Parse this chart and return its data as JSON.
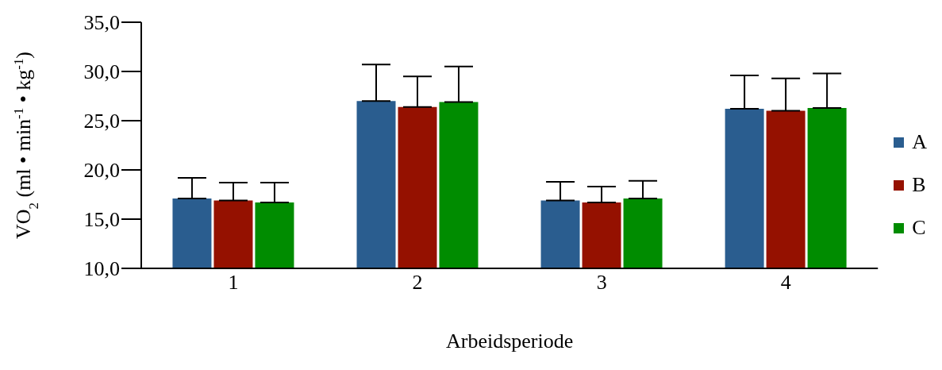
{
  "chart_data": {
    "type": "bar",
    "xlabel": "Arbeidsperiode",
    "ylabel": "VO$_{2}$ (ml • min$^{-1}$ • kg$^{-1}$)",
    "categories": [
      "1",
      "2",
      "3",
      "4"
    ],
    "series": [
      {
        "name": "A",
        "color": "#2a5d8f",
        "values": [
          17.1,
          27.0,
          16.9,
          26.2
        ],
        "errors": [
          [
            17.1,
            19.2
          ],
          [
            27.0,
            30.7
          ],
          [
            16.9,
            18.8
          ],
          [
            26.2,
            29.6
          ]
        ]
      },
      {
        "name": "B",
        "color": "#951100",
        "values": [
          16.9,
          26.4,
          16.7,
          26.0
        ],
        "errors": [
          [
            16.9,
            18.7
          ],
          [
            26.4,
            29.5
          ],
          [
            16.7,
            18.3
          ],
          [
            26.0,
            29.3
          ]
        ]
      },
      {
        "name": "C",
        "color": "#008c00",
        "values": [
          16.7,
          26.9,
          17.1,
          26.3
        ],
        "errors": [
          [
            16.7,
            18.7
          ],
          [
            26.9,
            30.5
          ],
          [
            17.1,
            18.9
          ],
          [
            26.3,
            29.8
          ]
        ]
      }
    ],
    "ylim": [
      10,
      35
    ],
    "yticks": [
      {
        "value": 10,
        "label": "10,0"
      },
      {
        "value": 15,
        "label": "15,0"
      },
      {
        "value": 20,
        "label": "20,0"
      },
      {
        "value": 25,
        "label": "25,0"
      },
      {
        "value": 30,
        "label": "30,0"
      },
      {
        "value": 35,
        "label": "35,0"
      }
    ],
    "grid": false,
    "legend": "right"
  }
}
